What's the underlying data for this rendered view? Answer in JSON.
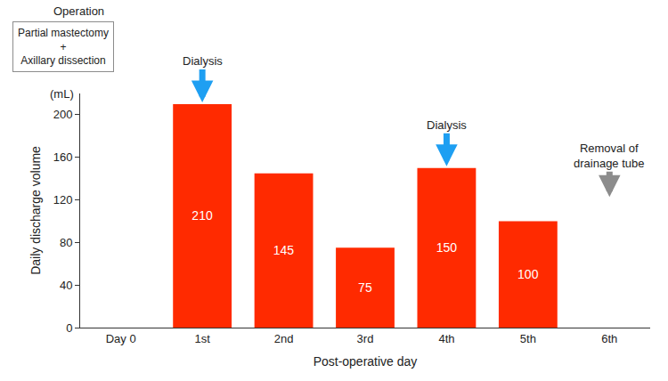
{
  "chart_data": {
    "type": "bar",
    "categories": [
      "Day 0",
      "1st",
      "2nd",
      "3rd",
      "4th",
      "5th",
      "6th"
    ],
    "values": [
      null,
      210,
      145,
      75,
      150,
      100,
      null
    ],
    "color": "#ff2a00",
    "ylim": [
      0,
      220
    ],
    "yticks": [
      0,
      40,
      80,
      120,
      160,
      200
    ],
    "y_label": "Daily discharge volume",
    "y_unit": "(mL)",
    "x_label": "Post-operative day",
    "data_labels": true,
    "grid": false,
    "annotations": [
      {
        "text": "Dialysis",
        "category": "1st",
        "color": "#1e9ff2"
      },
      {
        "text": "Dialysis",
        "category": "4th",
        "color": "#1e9ff2"
      },
      {
        "text": "Removal of drainage tube",
        "category": "6th",
        "color": "#8c8c8c"
      }
    ],
    "operation_box": {
      "title": "Operation",
      "lines": [
        "Partial mastectomy",
        "+",
        "Axillary dissection"
      ]
    }
  }
}
